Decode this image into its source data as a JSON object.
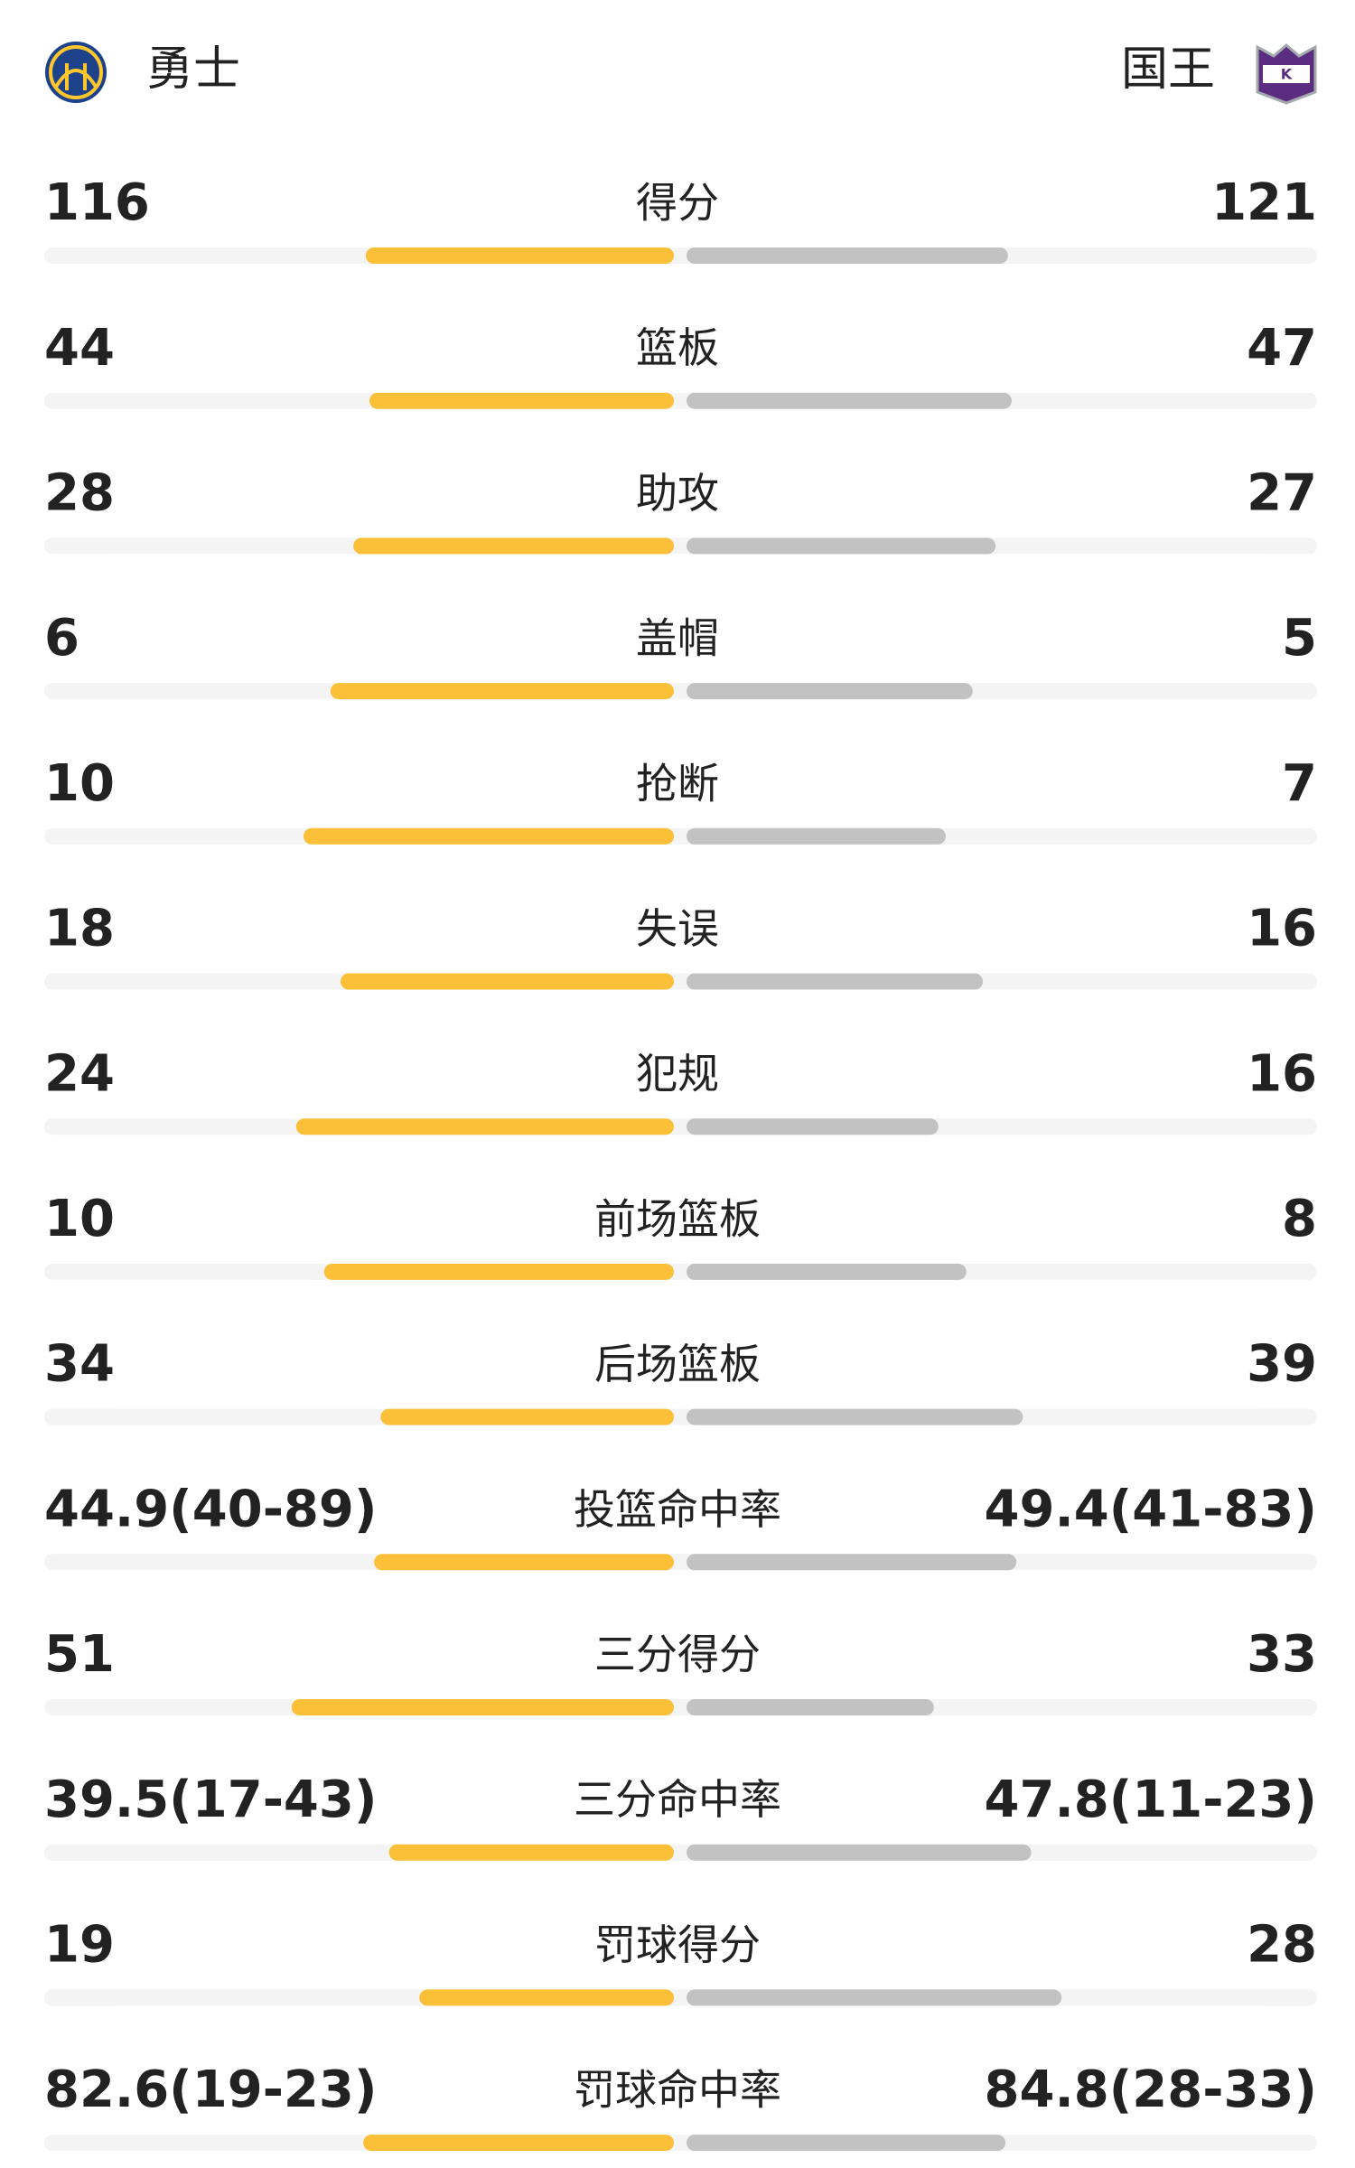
{
  "teams": {
    "home": "勇士",
    "away": "国王"
  },
  "stats": [
    {
      "label": "得分",
      "home": 116,
      "away": 121
    },
    {
      "label": "篮板",
      "home": 44,
      "away": 47
    },
    {
      "label": "助攻",
      "home": 28,
      "away": 27
    },
    {
      "label": "盖帽",
      "home": 6,
      "away": 5
    },
    {
      "label": "抢断",
      "home": 10,
      "away": 7
    },
    {
      "label": "失误",
      "home": 18,
      "away": 16
    },
    {
      "label": "犯规",
      "home": 24,
      "away": 16
    },
    {
      "label": "前场篮板",
      "home": 10,
      "away": 8
    },
    {
      "label": "后场篮板",
      "home": 34,
      "away": 39
    },
    {
      "label": "投篮命中率",
      "home": 44.9,
      "away": 49.4,
      "home_label": "44.9(40-89)",
      "away_label": "49.4(41-83)"
    },
    {
      "label": "三分得分",
      "home": 51,
      "away": 33
    },
    {
      "label": "三分命中率",
      "home": 39.5,
      "away": 47.8,
      "home_label": "39.5(17-43)",
      "away_label": "47.8(11-23)"
    },
    {
      "label": "罚球得分",
      "home": 19,
      "away": 28
    },
    {
      "label": "罚球命中率",
      "home": 82.6,
      "away": 84.8,
      "home_label": "82.6(19-23)",
      "away_label": "84.8(28-33)"
    }
  ]
}
